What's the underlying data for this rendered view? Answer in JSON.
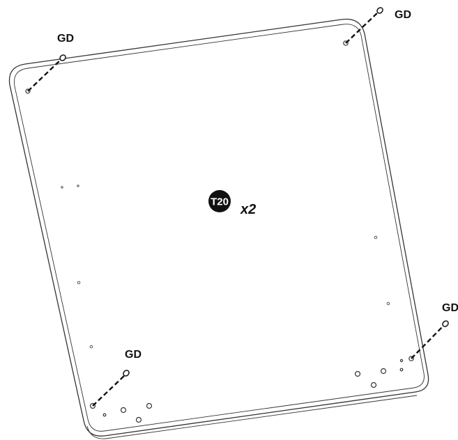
{
  "diagram": {
    "screw_labels": [
      "GD",
      "GD",
      "GD",
      "GD"
    ],
    "tool": {
      "badge": "T20",
      "quantity": "x2"
    },
    "colors": {
      "line": "#333333",
      "ink": "#111111",
      "badge": "#111111"
    }
  }
}
